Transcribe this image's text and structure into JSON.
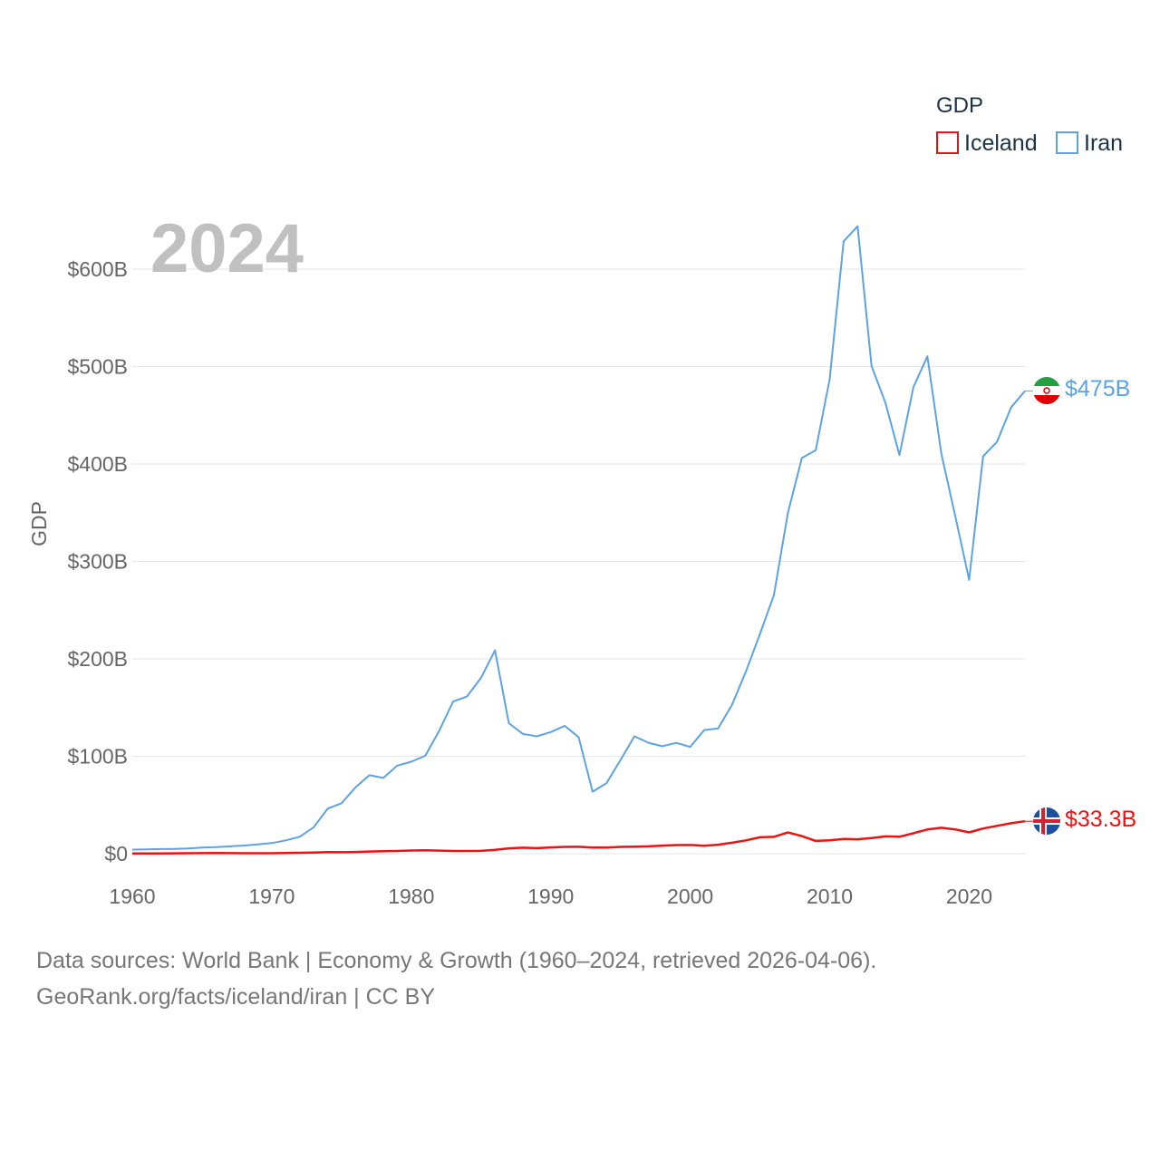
{
  "chart_data": {
    "type": "line",
    "title": "",
    "year_label": "2024",
    "xlabel": "",
    "ylabel": "GDP",
    "xlim": [
      1960,
      2024
    ],
    "ylim": [
      0,
      600
    ],
    "x_ticks": [
      1960,
      1970,
      1980,
      1990,
      2000,
      2010,
      2020
    ],
    "y_ticks": [
      {
        "value": 0,
        "label": "$0"
      },
      {
        "value": 100,
        "label": "$100B"
      },
      {
        "value": 200,
        "label": "$200B"
      },
      {
        "value": 300,
        "label": "$300B"
      },
      {
        "value": 400,
        "label": "$400B"
      },
      {
        "value": 500,
        "label": "$500B"
      },
      {
        "value": 600,
        "label": "$600B"
      }
    ],
    "legend": {
      "title": "GDP",
      "position": "top-right"
    },
    "series": [
      {
        "name": "Iceland",
        "color": "#ee1111",
        "flag": "iceland-flag",
        "end_label": "$33.3B",
        "x": [
          1960,
          1961,
          1962,
          1963,
          1964,
          1965,
          1966,
          1967,
          1968,
          1969,
          1970,
          1971,
          1972,
          1973,
          1974,
          1975,
          1976,
          1977,
          1978,
          1979,
          1980,
          1981,
          1982,
          1983,
          1984,
          1985,
          1986,
          1987,
          1988,
          1989,
          1990,
          1991,
          1992,
          1993,
          1994,
          1995,
          1996,
          1997,
          1998,
          1999,
          2000,
          2001,
          2002,
          2003,
          2004,
          2005,
          2006,
          2007,
          2008,
          2009,
          2010,
          2011,
          2012,
          2013,
          2014,
          2015,
          2016,
          2017,
          2018,
          2019,
          2020,
          2021,
          2022,
          2023,
          2024
        ],
        "values": [
          0.2,
          0.3,
          0.3,
          0.4,
          0.5,
          0.6,
          0.7,
          0.6,
          0.5,
          0.5,
          0.5,
          0.7,
          0.9,
          1.2,
          1.6,
          1.5,
          1.8,
          2.2,
          2.5,
          2.8,
          3.3,
          3.5,
          3.2,
          2.8,
          2.8,
          2.9,
          3.9,
          5.5,
          6.1,
          5.7,
          6.4,
          7.0,
          7.1,
          6.3,
          6.3,
          7.0,
          7.3,
          7.5,
          8.3,
          8.8,
          8.9,
          8.2,
          9.2,
          11.3,
          13.7,
          16.8,
          17.3,
          21.8,
          18.0,
          13.1,
          13.7,
          15.2,
          14.8,
          16.1,
          17.8,
          17.4,
          21.0,
          24.8,
          26.6,
          24.9,
          21.9,
          25.9,
          28.6,
          31.3,
          33.3
        ]
      },
      {
        "name": "Iran",
        "color": "#5ba3e6",
        "flag": "iran-flag",
        "end_label": "$475B",
        "x": [
          1960,
          1961,
          1962,
          1963,
          1964,
          1965,
          1966,
          1967,
          1968,
          1969,
          1970,
          1971,
          1972,
          1973,
          1974,
          1975,
          1976,
          1977,
          1978,
          1979,
          1980,
          1981,
          1982,
          1983,
          1984,
          1985,
          1986,
          1987,
          1988,
          1989,
          1990,
          1991,
          1992,
          1993,
          1994,
          1995,
          1996,
          1997,
          1998,
          1999,
          2000,
          2001,
          2002,
          2003,
          2004,
          2005,
          2006,
          2007,
          2008,
          2009,
          2010,
          2011,
          2012,
          2013,
          2014,
          2015,
          2016,
          2017,
          2018,
          2019,
          2020,
          2021,
          2022,
          2023,
          2024
        ],
        "values": [
          4.2,
          4.4,
          4.7,
          4.9,
          5.4,
          6.2,
          6.8,
          7.5,
          8.4,
          9.5,
          10.9,
          13.7,
          17.4,
          27.1,
          46.2,
          51.8,
          68.1,
          80.6,
          77.8,
          90.4,
          94.4,
          100.5,
          126.0,
          156.2,
          161.5,
          180.6,
          208.7,
          134.0,
          123.0,
          120.5,
          124.8,
          131.3,
          119.5,
          63.6,
          72.5,
          96.3,
          120.5,
          113.9,
          110.3,
          113.8,
          109.6,
          126.9,
          128.6,
          152.9,
          187.3,
          225.6,
          265.7,
          349.9,
          406.1,
          414.1,
          487.1,
          628.6,
          644.0,
          500.6,
          462.6,
          409.2,
          478.9,
          510.5,
          410.7,
          346.8,
          281.1,
          407.9,
          422.9,
          458.0,
          475.0
        ]
      }
    ]
  },
  "source": {
    "line1": "Data sources: World Bank | Economy & Growth (1960–2024, retrieved 2026-04-06).",
    "line2": "GeoRank.org/facts/iceland/iran | CC BY"
  }
}
